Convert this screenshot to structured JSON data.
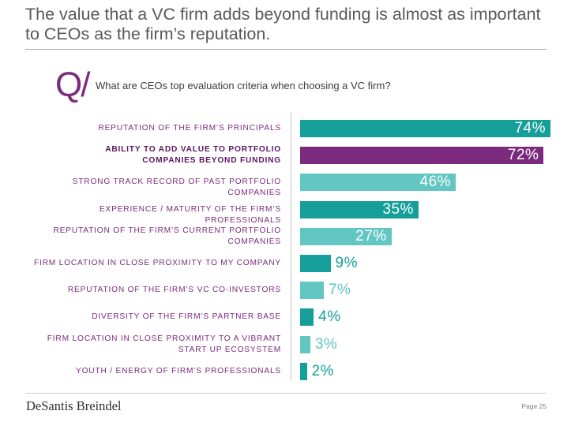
{
  "title": "The value that a VC firm adds beyond funding is almost as important to CEOs as the firm’s reputation.",
  "question_mark": "Q/",
  "question": "What are CEOs top evaluation criteria when choosing a VC firm?",
  "footer": {
    "logo": "DeSantis Breindel",
    "page": "Page 25"
  },
  "colors": {
    "primary": "#159e9a",
    "light": "#62c6c2",
    "highlight": "#7b2a7e",
    "text": "#7b2a7e"
  },
  "chart_data": {
    "type": "bar",
    "orientation": "horizontal",
    "unit": "%",
    "xlim": [
      0,
      100
    ],
    "categories": [
      {
        "lines": [
          "REPUTATION OF THE FIRM’S PRINCIPALS"
        ],
        "value": 74,
        "label": "74%",
        "tone": "primary",
        "highlight": false
      },
      {
        "lines": [
          "ABILITY TO ADD VALUE TO PORTFOLIO",
          "COMPANIES BEYOND FUNDING"
        ],
        "value": 72,
        "label": "72%",
        "tone": "highlight",
        "highlight": true
      },
      {
        "lines": [
          "STRONG TRACK RECORD OF PAST PORTFOLIO COMPANIES"
        ],
        "value": 46,
        "label": "46%",
        "tone": "light",
        "highlight": false
      },
      {
        "lines": [
          "EXPERIENCE / MATURITY OF THE FIRM’S PROFESSIONALS"
        ],
        "value": 35,
        "label": "35%",
        "tone": "primary",
        "highlight": false
      },
      {
        "lines": [
          "REPUTATION OF THE FIRM’S CURRENT PORTFOLIO",
          "COMPANIES"
        ],
        "value": 27,
        "label": "27%",
        "tone": "light",
        "highlight": false
      },
      {
        "lines": [
          "FIRM LOCATION IN CLOSE PROXIMITY TO MY COMPANY"
        ],
        "value": 9,
        "label": "9%",
        "tone": "primary",
        "highlight": false
      },
      {
        "lines": [
          "REPUTATION OF THE FIRM’S VC CO-INVESTORS"
        ],
        "value": 7,
        "label": "7%",
        "tone": "light",
        "highlight": false
      },
      {
        "lines": [
          "DIVERSITY OF THE FIRM’S PARTNER BASE"
        ],
        "value": 4,
        "label": "4%",
        "tone": "primary",
        "highlight": false
      },
      {
        "lines": [
          "FIRM LOCATION IN CLOSE PROXIMITY TO A VIBRANT",
          "START UP ECOSYSTEM"
        ],
        "value": 3,
        "label": "3%",
        "tone": "light",
        "highlight": false
      },
      {
        "lines": [
          "YOUTH / ENERGY OF FIRM’S PROFESSIONALS"
        ],
        "value": 2,
        "label": "2%",
        "tone": "primary",
        "highlight": false
      }
    ]
  }
}
